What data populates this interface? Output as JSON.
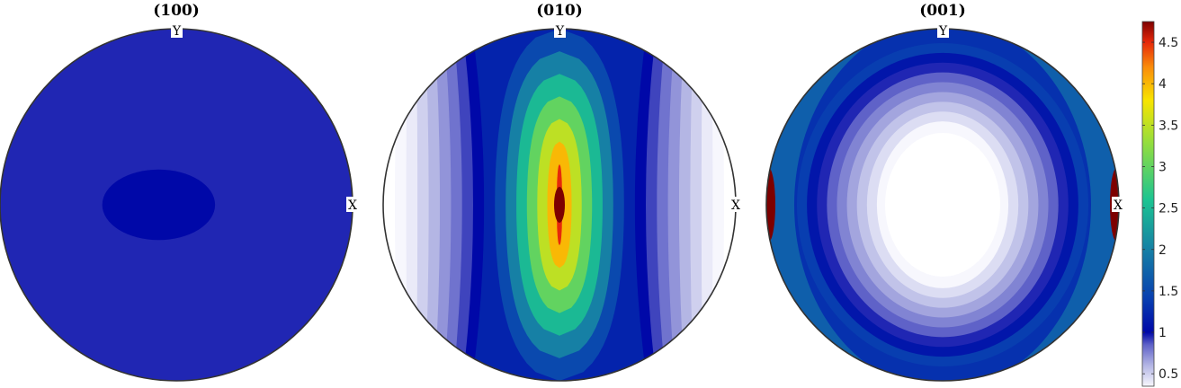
{
  "chart_data": {
    "type": "heatmap",
    "plot_kind": "pole figures (contour)",
    "colormap": "white-blue-cyan-green-yellow-red",
    "colorbar": {
      "range": [
        0.35,
        4.75
      ],
      "ticks": [
        0.5,
        1,
        1.5,
        2,
        2.5,
        3,
        3.5,
        4,
        4.5
      ],
      "tick_labels": [
        "0.5",
        "1",
        "1.5",
        "2",
        "2.5",
        "3",
        "3.5",
        "4",
        "4.5"
      ]
    },
    "panels": [
      {
        "title": "(100)",
        "x_label": "X",
        "y_label": "Y",
        "shape": "uniform",
        "background_value": 0.95,
        "max_value": 1.0,
        "regions": [
          {
            "value": 1.0,
            "shape": "ellipse",
            "center": [
              -0.1,
              0.0
            ],
            "radius": [
              0.32,
              0.2
            ]
          }
        ]
      },
      {
        "title": "(010)",
        "x_label": "X",
        "y_label": "Y",
        "shape": "vertical bands",
        "max_value": 4.75,
        "center_peak": {
          "value": 4.75,
          "center": [
            0.0,
            0.0
          ]
        },
        "band_levels": [
          4.5,
          4.0,
          3.5,
          3.0,
          2.5,
          2.0,
          1.5,
          1.2,
          1.0,
          0.9,
          0.8,
          0.7,
          0.6,
          0.5,
          0.4,
          0.35
        ]
      },
      {
        "title": "(001)",
        "x_label": "X",
        "y_label": "Y",
        "shape": "concentric rings",
        "max_value": 4.75,
        "center_value": 0.35,
        "edge_peak": {
          "value": 4.75,
          "location": "X"
        },
        "ring_levels": [
          0.35,
          0.45,
          0.55,
          0.65,
          0.75,
          0.85,
          0.95,
          1.1,
          1.4,
          2.0,
          2.8,
          4.0
        ]
      }
    ]
  }
}
